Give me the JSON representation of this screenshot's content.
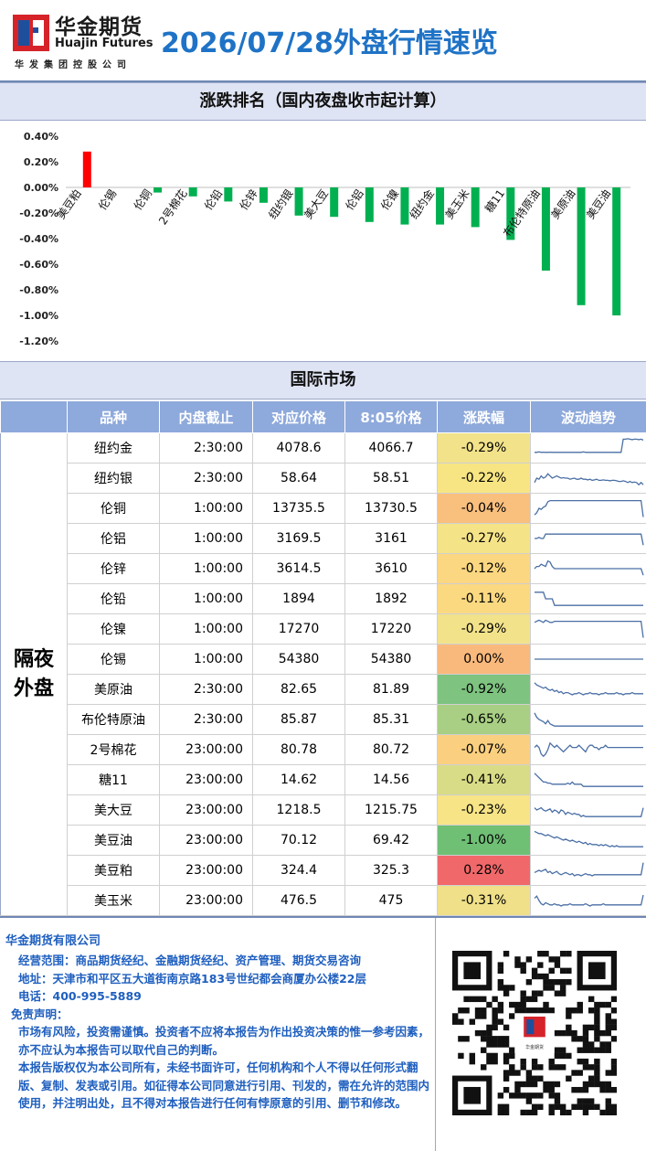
{
  "header": {
    "company_cn": "华金期货",
    "company_en": "Huajin Futures",
    "company_sub": "华发集团控股公司",
    "title": "2026/07/28外盘行情速览"
  },
  "sections": {
    "ranking_title": "涨跌排名（国内夜盘收市起计算）",
    "market_title": "国际市场"
  },
  "chart_data": {
    "type": "bar",
    "title": "涨跌排名（国内夜盘收市起计算）",
    "categories": [
      "美豆粕",
      "伦锡",
      "伦铜",
      "2号棉花",
      "伦铅",
      "伦锌",
      "纽约银",
      "美大豆",
      "伦铝",
      "伦镍",
      "纽约金",
      "美玉米",
      "糖11",
      "布伦特原油",
      "美原油",
      "美豆油"
    ],
    "values": [
      0.28,
      0.0,
      -0.04,
      -0.07,
      -0.11,
      -0.12,
      -0.22,
      -0.23,
      -0.27,
      -0.29,
      -0.29,
      -0.31,
      -0.41,
      -0.65,
      -0.92,
      -1.0
    ],
    "ylim": [
      -1.2,
      0.4
    ],
    "yticks": [
      "0.40%",
      "0.20%",
      "0.00%",
      "-0.20%",
      "-0.40%",
      "-0.60%",
      "-0.80%",
      "-1.00%",
      "-1.20%"
    ],
    "colors": {
      "up": "#ff0000",
      "down": "#00b050"
    },
    "grid": false,
    "legend": "none"
  },
  "table": {
    "columns": [
      "品种",
      "内盘截止",
      "对应价格",
      "8:05价格",
      "涨跌幅",
      "波动趋势"
    ],
    "group_label": "隔夜外盘",
    "rows": [
      {
        "name": "纽约金",
        "close": "2:30:00",
        "ref": "4078.6",
        "price": "4066.7",
        "chg": "-0.29%",
        "bg": "#f2e28a",
        "trend": [
          0.3,
          0.3,
          0.32,
          0.3,
          0.31,
          0.3,
          0.3,
          0.31,
          0.3,
          0.3,
          0.3,
          0.3,
          0.3,
          0.3,
          0.3,
          0.3,
          0.3,
          0.3,
          0.3,
          0.3,
          0.3,
          0.3,
          0.32,
          0.3,
          0.3,
          0.3,
          0.3,
          0.3,
          0.3,
          0.3,
          0.3,
          0.3,
          0.3,
          0.3,
          0.3,
          0.3,
          0.3,
          0.3,
          0.3,
          0.3,
          0.9,
          0.9,
          0.92,
          0.9,
          0.88,
          0.9,
          0.9,
          0.88,
          0.9,
          0.86
        ]
      },
      {
        "name": "纽约银",
        "close": "2:30:00",
        "ref": "58.64",
        "price": "58.51",
        "chg": "-0.22%",
        "bg": "#f7e583",
        "trend": [
          0.3,
          0.5,
          0.45,
          0.6,
          0.5,
          0.55,
          0.7,
          0.6,
          0.5,
          0.55,
          0.6,
          0.55,
          0.5,
          0.52,
          0.5,
          0.5,
          0.45,
          0.48,
          0.5,
          0.45,
          0.45,
          0.5,
          0.45,
          0.45,
          0.42,
          0.45,
          0.4,
          0.42,
          0.45,
          0.4,
          0.4,
          0.42,
          0.4,
          0.4,
          0.38,
          0.4,
          0.4,
          0.38,
          0.35,
          0.35,
          0.38,
          0.35,
          0.3,
          0.35,
          0.3,
          0.32,
          0.3,
          0.2,
          0.3,
          0.2
        ]
      },
      {
        "name": "伦铜",
        "close": "1:00:00",
        "ref": "13735.5",
        "price": "13730.5",
        "chg": "-0.04%",
        "bg": "#f9bf7d",
        "trend": [
          0.2,
          0.3,
          0.5,
          0.45,
          0.55,
          0.6,
          0.8,
          0.85,
          0.85,
          0.85,
          0.85,
          0.85,
          0.85,
          0.85,
          0.85,
          0.85,
          0.85,
          0.85,
          0.85,
          0.85,
          0.85,
          0.85,
          0.85,
          0.85,
          0.85,
          0.85,
          0.85,
          0.85,
          0.85,
          0.85,
          0.85,
          0.85,
          0.85,
          0.85,
          0.85,
          0.85,
          0.85,
          0.85,
          0.85,
          0.85,
          0.85,
          0.85,
          0.85,
          0.85,
          0.85,
          0.85,
          0.85,
          0.85,
          0.85,
          0.1
        ]
      },
      {
        "name": "伦铝",
        "close": "1:00:00",
        "ref": "3169.5",
        "price": "3161",
        "chg": "-0.27%",
        "bg": "#f5e388",
        "trend": [
          0.5,
          0.5,
          0.55,
          0.5,
          0.5,
          0.7,
          0.7,
          0.7,
          0.7,
          0.7,
          0.7,
          0.7,
          0.7,
          0.7,
          0.7,
          0.7,
          0.7,
          0.7,
          0.7,
          0.7,
          0.7,
          0.7,
          0.7,
          0.7,
          0.7,
          0.7,
          0.7,
          0.7,
          0.7,
          0.7,
          0.7,
          0.7,
          0.7,
          0.7,
          0.7,
          0.7,
          0.7,
          0.7,
          0.7,
          0.7,
          0.7,
          0.7,
          0.7,
          0.7,
          0.7,
          0.7,
          0.7,
          0.7,
          0.7,
          0.2
        ]
      },
      {
        "name": "伦锌",
        "close": "1:00:00",
        "ref": "3614.5",
        "price": "3610",
        "chg": "-0.12%",
        "bg": "#fbd781",
        "trend": [
          0.5,
          0.6,
          0.6,
          0.7,
          0.65,
          0.6,
          0.85,
          0.8,
          0.6,
          0.5,
          0.5,
          0.5,
          0.5,
          0.5,
          0.5,
          0.5,
          0.5,
          0.5,
          0.5,
          0.5,
          0.5,
          0.5,
          0.5,
          0.5,
          0.5,
          0.5,
          0.5,
          0.5,
          0.5,
          0.5,
          0.5,
          0.5,
          0.5,
          0.5,
          0.5,
          0.5,
          0.5,
          0.5,
          0.5,
          0.5,
          0.5,
          0.5,
          0.5,
          0.5,
          0.5,
          0.5,
          0.5,
          0.5,
          0.5,
          0.2
        ]
      },
      {
        "name": "伦铅",
        "close": "1:00:00",
        "ref": "1894",
        "price": "1892",
        "chg": "-0.11%",
        "bg": "#fbd981",
        "trend": [
          0.8,
          0.8,
          0.8,
          0.8,
          0.8,
          0.5,
          0.5,
          0.5,
          0.5,
          0.2,
          0.2,
          0.2,
          0.2,
          0.2,
          0.2,
          0.2,
          0.2,
          0.2,
          0.2,
          0.2,
          0.2,
          0.2,
          0.2,
          0.2,
          0.2,
          0.2,
          0.2,
          0.2,
          0.2,
          0.2,
          0.2,
          0.2,
          0.2,
          0.2,
          0.2,
          0.2,
          0.2,
          0.2,
          0.2,
          0.2,
          0.2,
          0.2,
          0.2,
          0.2,
          0.2,
          0.2,
          0.2,
          0.2,
          0.2,
          0.2
        ]
      },
      {
        "name": "伦镍",
        "close": "1:00:00",
        "ref": "17270",
        "price": "17220",
        "chg": "-0.29%",
        "bg": "#f2e28a",
        "trend": [
          0.8,
          0.85,
          0.9,
          0.85,
          0.8,
          0.9,
          0.85,
          0.8,
          0.8,
          0.85,
          0.85,
          0.85,
          0.85,
          0.85,
          0.85,
          0.85,
          0.85,
          0.85,
          0.85,
          0.85,
          0.85,
          0.85,
          0.85,
          0.85,
          0.85,
          0.85,
          0.85,
          0.85,
          0.85,
          0.85,
          0.85,
          0.85,
          0.85,
          0.85,
          0.85,
          0.85,
          0.85,
          0.85,
          0.85,
          0.85,
          0.85,
          0.85,
          0.85,
          0.85,
          0.85,
          0.85,
          0.85,
          0.85,
          0.85,
          0.1
        ]
      },
      {
        "name": "伦锡",
        "close": "1:00:00",
        "ref": "54380",
        "price": "54380",
        "chg": "0.00%",
        "bg": "#f9b97c",
        "trend": [
          0.5,
          0.5,
          0.5,
          0.5,
          0.5,
          0.5,
          0.5,
          0.5,
          0.5,
          0.5,
          0.5,
          0.5,
          0.5,
          0.5,
          0.5,
          0.5,
          0.5,
          0.5,
          0.5,
          0.5,
          0.5,
          0.5,
          0.5,
          0.5,
          0.5,
          0.5,
          0.5,
          0.5,
          0.5,
          0.5,
          0.5,
          0.5,
          0.5,
          0.5,
          0.5,
          0.5,
          0.5,
          0.5,
          0.5,
          0.5,
          0.5,
          0.5,
          0.5,
          0.5,
          0.5,
          0.5,
          0.5,
          0.5,
          0.5,
          0.5
        ]
      },
      {
        "name": "美原油",
        "close": "2:30:00",
        "ref": "82.65",
        "price": "81.89",
        "chg": "-0.92%",
        "bg": "#7ec380",
        "trend": [
          0.8,
          0.7,
          0.65,
          0.6,
          0.55,
          0.6,
          0.5,
          0.45,
          0.5,
          0.4,
          0.45,
          0.35,
          0.4,
          0.3,
          0.35,
          0.35,
          0.3,
          0.25,
          0.3,
          0.3,
          0.35,
          0.3,
          0.25,
          0.3,
          0.3,
          0.35,
          0.3,
          0.3,
          0.3,
          0.25,
          0.3,
          0.3,
          0.35,
          0.3,
          0.3,
          0.3,
          0.3,
          0.35,
          0.3,
          0.3,
          0.25,
          0.3,
          0.3,
          0.3,
          0.35,
          0.3,
          0.3,
          0.3,
          0.3,
          0.3
        ]
      },
      {
        "name": "布伦特原油",
        "close": "2:30:00",
        "ref": "85.87",
        "price": "85.31",
        "chg": "-0.65%",
        "bg": "#a8cf83",
        "trend": [
          0.8,
          0.6,
          0.5,
          0.45,
          0.4,
          0.3,
          0.45,
          0.3,
          0.25,
          0.2,
          0.2,
          0.2,
          0.2,
          0.2,
          0.2,
          0.2,
          0.2,
          0.2,
          0.2,
          0.2,
          0.2,
          0.2,
          0.2,
          0.2,
          0.2,
          0.2,
          0.2,
          0.2,
          0.2,
          0.2,
          0.2,
          0.2,
          0.2,
          0.2,
          0.2,
          0.2,
          0.2,
          0.2,
          0.2,
          0.2,
          0.2,
          0.2,
          0.2,
          0.2,
          0.2,
          0.2,
          0.2,
          0.2,
          0.2,
          0.2
        ]
      },
      {
        "name": "2号棉花",
        "close": "23:00:00",
        "ref": "80.78",
        "price": "80.72",
        "chg": "-0.07%",
        "bg": "#fad080",
        "trend": [
          0.6,
          0.7,
          0.6,
          0.3,
          0.2,
          0.3,
          0.5,
          0.8,
          0.7,
          0.6,
          0.7,
          0.6,
          0.5,
          0.4,
          0.5,
          0.6,
          0.7,
          0.6,
          0.6,
          0.6,
          0.7,
          0.6,
          0.5,
          0.4,
          0.6,
          0.7,
          0.7,
          0.6,
          0.6,
          0.5,
          0.6,
          0.6,
          0.7,
          0.6,
          0.6,
          0.6,
          0.6,
          0.6,
          0.6,
          0.6,
          0.6,
          0.6,
          0.6,
          0.6,
          0.6,
          0.6,
          0.6,
          0.6,
          0.6,
          0.6
        ]
      },
      {
        "name": "糖11",
        "close": "23:00:00",
        "ref": "14.62",
        "price": "14.56",
        "chg": "-0.41%",
        "bg": "#d9dc86",
        "trend": [
          0.8,
          0.7,
          0.6,
          0.5,
          0.4,
          0.4,
          0.35,
          0.35,
          0.3,
          0.3,
          0.3,
          0.3,
          0.3,
          0.3,
          0.3,
          0.35,
          0.3,
          0.4,
          0.3,
          0.3,
          0.3,
          0.3,
          0.2,
          0.2,
          0.2,
          0.2,
          0.2,
          0.2,
          0.2,
          0.2,
          0.2,
          0.2,
          0.2,
          0.2,
          0.2,
          0.2,
          0.2,
          0.2,
          0.2,
          0.2,
          0.2,
          0.2,
          0.2,
          0.2,
          0.2,
          0.2,
          0.2,
          0.2,
          0.2,
          0.2
        ]
      },
      {
        "name": "美大豆",
        "close": "23:00:00",
        "ref": "1218.5",
        "price": "1215.75",
        "chg": "-0.23%",
        "bg": "#f6e486",
        "trend": [
          0.6,
          0.5,
          0.55,
          0.6,
          0.5,
          0.45,
          0.5,
          0.55,
          0.4,
          0.5,
          0.45,
          0.35,
          0.5,
          0.45,
          0.3,
          0.4,
          0.35,
          0.3,
          0.35,
          0.3,
          0.3,
          0.2,
          0.25,
          0.2,
          0.2,
          0.2,
          0.2,
          0.2,
          0.2,
          0.2,
          0.2,
          0.2,
          0.2,
          0.2,
          0.2,
          0.2,
          0.2,
          0.2,
          0.2,
          0.2,
          0.2,
          0.2,
          0.2,
          0.2,
          0.2,
          0.2,
          0.2,
          0.2,
          0.2,
          0.6
        ]
      },
      {
        "name": "美豆油",
        "close": "23:00:00",
        "ref": "70.12",
        "price": "69.42",
        "chg": "-1.00%",
        "bg": "#6fbf75",
        "trend": [
          0.9,
          0.85,
          0.8,
          0.8,
          0.75,
          0.7,
          0.75,
          0.7,
          0.65,
          0.6,
          0.65,
          0.6,
          0.55,
          0.5,
          0.55,
          0.5,
          0.45,
          0.5,
          0.45,
          0.4,
          0.45,
          0.4,
          0.35,
          0.4,
          0.3,
          0.35,
          0.3,
          0.3,
          0.3,
          0.25,
          0.3,
          0.25,
          0.3,
          0.25,
          0.2,
          0.25,
          0.2,
          0.25,
          0.2,
          0.2,
          0.2,
          0.2,
          0.2,
          0.2,
          0.2,
          0.2,
          0.2,
          0.2,
          0.2,
          0.2
        ]
      },
      {
        "name": "美豆粕",
        "close": "23:00:00",
        "ref": "324.4",
        "price": "325.3",
        "chg": "0.28%",
        "bg": "#f0686a",
        "trend": [
          0.4,
          0.45,
          0.5,
          0.45,
          0.5,
          0.55,
          0.4,
          0.45,
          0.35,
          0.4,
          0.45,
          0.35,
          0.3,
          0.35,
          0.4,
          0.35,
          0.3,
          0.35,
          0.25,
          0.3,
          0.3,
          0.25,
          0.3,
          0.35,
          0.3,
          0.3,
          0.25,
          0.3,
          0.3,
          0.3,
          0.3,
          0.3,
          0.3,
          0.3,
          0.3,
          0.3,
          0.3,
          0.3,
          0.3,
          0.3,
          0.3,
          0.3,
          0.3,
          0.3,
          0.3,
          0.3,
          0.3,
          0.3,
          0.3,
          0.85
        ]
      },
      {
        "name": "美玉米",
        "close": "23:00:00",
        "ref": "476.5",
        "price": "475",
        "chg": "-0.31%",
        "bg": "#efe089",
        "trend": [
          0.6,
          0.7,
          0.5,
          0.35,
          0.3,
          0.4,
          0.35,
          0.3,
          0.3,
          0.35,
          0.3,
          0.3,
          0.25,
          0.3,
          0.3,
          0.3,
          0.35,
          0.3,
          0.3,
          0.3,
          0.3,
          0.3,
          0.3,
          0.35,
          0.3,
          0.25,
          0.3,
          0.3,
          0.3,
          0.3,
          0.3,
          0.35,
          0.3,
          0.3,
          0.3,
          0.3,
          0.3,
          0.3,
          0.3,
          0.3,
          0.3,
          0.3,
          0.3,
          0.3,
          0.3,
          0.3,
          0.3,
          0.3,
          0.3,
          0.75
        ]
      }
    ]
  },
  "footer": {
    "company": "华金期货有限公司",
    "scope": "经营范围：商品期货经纪、金融期货经纪、资产管理、期货交易咨询",
    "address": "地址：天津市和平区五大道街南京路183号世纪都会商厦办公楼22层",
    "phone": "电话：400-995-5889",
    "disclaimer_title": "免责声明：",
    "disclaimer_1": "市场有风险，投资需谨慎。投资者不应将本报告为作出投资决策的惟一参考因素，亦不应认为本报告可以取代自己的判断。",
    "disclaimer_2": "本报告版权仅为本公司所有，未经书面许可，任何机构和个人不得以任何形式翻版、复制、发表或引用。如征得本公司同意进行引用、刊发的，需在允许的范围内使用，并注明出处，且不得对本报告进行任何有悖原意的引用、删节和修改。",
    "qr_label": "华金期货"
  }
}
